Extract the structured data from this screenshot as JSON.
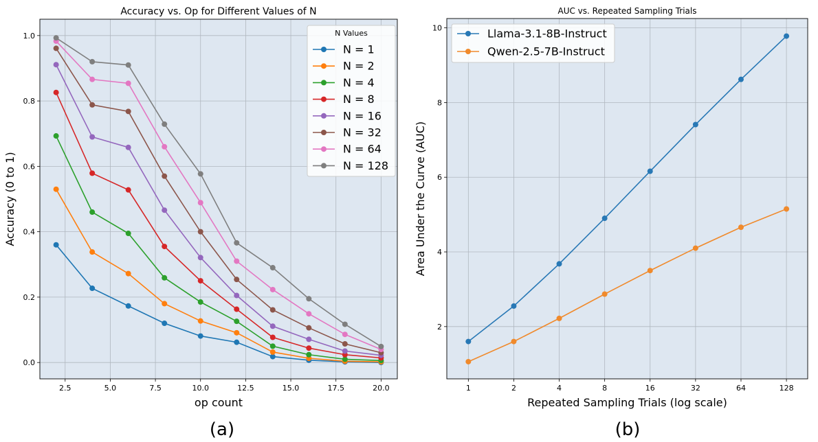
{
  "panel_labels": [
    "(a)",
    "(b)"
  ],
  "chart_data": [
    {
      "type": "line",
      "title": "Accuracy vs. Op for Different Values of N",
      "xlabel": "op count",
      "ylabel": "Accuracy (0 to 1)",
      "xlim": [
        1.1,
        20.9
      ],
      "ylim": [
        -0.05,
        1.05
      ],
      "xticks": [
        2.5,
        5.0,
        7.5,
        10.0,
        12.5,
        15.0,
        17.5,
        20.0
      ],
      "xtick_labels": [
        "2.5",
        "5.0",
        "7.5",
        "10.0",
        "12.5",
        "15.0",
        "17.5",
        "20.0"
      ],
      "yticks": [
        0.0,
        0.2,
        0.4,
        0.6,
        0.8,
        1.0
      ],
      "ytick_labels": [
        "0.0",
        "0.2",
        "0.4",
        "0.6",
        "0.8",
        "1.0"
      ],
      "grid": true,
      "legend": {
        "title": "N Values",
        "placement": "top-right"
      },
      "x": [
        2,
        4,
        6,
        8,
        10,
        12,
        14,
        16,
        18,
        20
      ],
      "series": [
        {
          "name": "N = 1",
          "color": "#1f77b4",
          "values": [
            0.36,
            0.227,
            0.173,
            0.12,
            0.081,
            0.062,
            0.018,
            0.007,
            0.002,
            0.0
          ]
        },
        {
          "name": "N = 2",
          "color": "#ff7f0e",
          "values": [
            0.53,
            0.338,
            0.272,
            0.18,
            0.127,
            0.091,
            0.032,
            0.013,
            0.004,
            0.002
          ]
        },
        {
          "name": "N = 4",
          "color": "#2ca02c",
          "values": [
            0.693,
            0.46,
            0.395,
            0.259,
            0.185,
            0.126,
            0.05,
            0.024,
            0.01,
            0.006
          ]
        },
        {
          "name": "N = 8",
          "color": "#d62728",
          "values": [
            0.826,
            0.579,
            0.528,
            0.355,
            0.25,
            0.163,
            0.077,
            0.044,
            0.024,
            0.014
          ]
        },
        {
          "name": "N = 16",
          "color": "#9467bd",
          "values": [
            0.911,
            0.69,
            0.658,
            0.466,
            0.321,
            0.205,
            0.111,
            0.071,
            0.035,
            0.022
          ]
        },
        {
          "name": "N = 32",
          "color": "#8c564b",
          "values": [
            0.961,
            0.788,
            0.768,
            0.57,
            0.4,
            0.254,
            0.161,
            0.106,
            0.057,
            0.03
          ]
        },
        {
          "name": "N = 64",
          "color": "#e377c2",
          "values": [
            0.983,
            0.866,
            0.854,
            0.66,
            0.489,
            0.31,
            0.223,
            0.149,
            0.086,
            0.04
          ]
        },
        {
          "name": "N = 128",
          "color": "#7f7f7f",
          "values": [
            0.993,
            0.92,
            0.91,
            0.729,
            0.577,
            0.366,
            0.29,
            0.195,
            0.117,
            0.049
          ]
        }
      ]
    },
    {
      "type": "line",
      "title": "AUC vs. Repeated Sampling Trials",
      "xlabel": "Repeated Sampling Trials (log scale)",
      "ylabel": "Area Under the Curve (AUC)",
      "xscale": "log2",
      "xlim": [
        0.72,
        177
      ],
      "ylim": [
        0.6,
        10.25
      ],
      "xticks": [
        1,
        2,
        4,
        8,
        16,
        32,
        64,
        128
      ],
      "xtick_labels": [
        "1",
        "2",
        "4",
        "8",
        "16",
        "32",
        "64",
        "128"
      ],
      "yticks": [
        2,
        4,
        6,
        8,
        10
      ],
      "ytick_labels": [
        "2",
        "4",
        "6",
        "8",
        "10"
      ],
      "grid": true,
      "legend": {
        "placement": "top-left"
      },
      "x": [
        1,
        2,
        4,
        8,
        16,
        32,
        64,
        128
      ],
      "series": [
        {
          "name": "Llama-3.1-8B-Instruct",
          "color": "#2878b5",
          "values": [
            1.6,
            2.55,
            3.68,
            4.9,
            6.16,
            7.41,
            8.62,
            9.78
          ]
        },
        {
          "name": "Qwen-2.5-7B-Instruct",
          "color": "#f08a2c",
          "values": [
            1.06,
            1.6,
            2.22,
            2.87,
            3.5,
            4.1,
            4.66,
            5.15
          ]
        }
      ]
    }
  ]
}
